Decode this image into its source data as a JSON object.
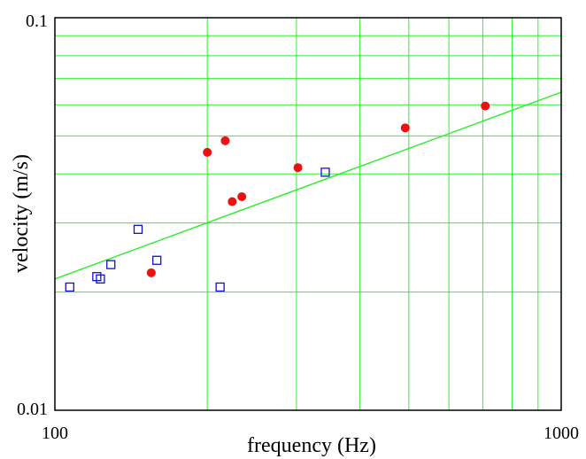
{
  "chart_data": {
    "type": "scatter",
    "xscale": "log",
    "yscale": "log",
    "xlim": [
      100,
      1000
    ],
    "ylim": [
      0.01,
      0.1
    ],
    "xlabel": "frequency (Hz)",
    "ylabel": "velocity (m/s)",
    "xticklabels": [
      "100",
      "1000"
    ],
    "yticklabels": [
      "0.1",
      "0.01"
    ],
    "grid": true,
    "colors": {
      "grid": "#33ee33",
      "fit": "#33ee33",
      "filled": "#ee1111",
      "open": "#1111cc"
    },
    "series": [
      {
        "marker": "filled-circle",
        "points": [
          {
            "x": 155,
            "y": 0.0224
          },
          {
            "x": 200,
            "y": 0.0454
          },
          {
            "x": 217,
            "y": 0.0486
          },
          {
            "x": 224,
            "y": 0.034
          },
          {
            "x": 234,
            "y": 0.035
          },
          {
            "x": 302,
            "y": 0.0415
          },
          {
            "x": 492,
            "y": 0.0524
          },
          {
            "x": 708,
            "y": 0.0596
          }
        ]
      },
      {
        "marker": "open-square",
        "points": [
          {
            "x": 107,
            "y": 0.0206
          },
          {
            "x": 121,
            "y": 0.0219
          },
          {
            "x": 123,
            "y": 0.0216
          },
          {
            "x": 129,
            "y": 0.0235
          },
          {
            "x": 146,
            "y": 0.0289
          },
          {
            "x": 159,
            "y": 0.0241
          },
          {
            "x": 212,
            "y": 0.0206
          },
          {
            "x": 342,
            "y": 0.0404
          }
        ]
      }
    ],
    "fit_line": {
      "x": [
        100,
        1000
      ],
      "y": [
        0.0216,
        0.0646
      ]
    }
  }
}
